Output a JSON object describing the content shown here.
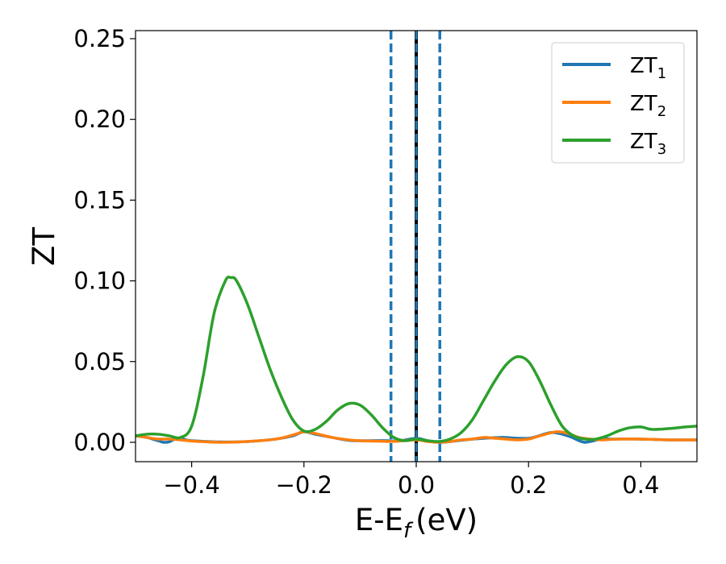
{
  "chart_data": {
    "type": "line",
    "title": "",
    "xlabel": "E-E",
    "xlabel_sub": "f",
    "xlabel_unit": "(eV)",
    "ylabel": "ZT",
    "xlim": [
      -0.5,
      0.5
    ],
    "ylim": [
      -0.012,
      0.255
    ],
    "xticks": [
      -0.4,
      -0.2,
      0.0,
      0.2,
      0.4
    ],
    "xtick_labels": [
      "−0.4",
      "−0.2",
      "0.0",
      "0.2",
      "0.4"
    ],
    "yticks": [
      0.0,
      0.05,
      0.1,
      0.15,
      0.2,
      0.25
    ],
    "ytick_labels": [
      "0.00",
      "0.05",
      "0.10",
      "0.15",
      "0.20",
      "0.25"
    ],
    "grid": false,
    "legend_position": "top-right",
    "vlines": [
      {
        "x": -0.045,
        "color": "#1f77b4",
        "style": "dashed"
      },
      {
        "x": 0.0,
        "color": "#1f77b4",
        "style": "solid-over-black"
      },
      {
        "x": 0.042,
        "color": "#1f77b4",
        "style": "dashed"
      }
    ],
    "series": [
      {
        "name": "ZT",
        "subscript": "1",
        "color": "#1f77b4",
        "x": [
          -0.5,
          -0.48,
          -0.46,
          -0.45,
          -0.44,
          -0.43,
          -0.42,
          -0.41,
          -0.4,
          -0.35,
          -0.3,
          -0.25,
          -0.22,
          -0.2,
          -0.18,
          -0.15,
          -0.12,
          -0.1,
          -0.08,
          -0.05,
          -0.03,
          0.0,
          0.02,
          0.04,
          0.06,
          0.1,
          0.15,
          0.2,
          0.24,
          0.27,
          0.29,
          0.3,
          0.31,
          0.33,
          0.35,
          0.4,
          0.45,
          0.5
        ],
        "y": [
          0.004,
          0.003,
          0.001,
          0.0,
          0.0003,
          0.002,
          0.0025,
          0.0015,
          0.001,
          0.0002,
          0.0005,
          0.002,
          0.004,
          0.0065,
          0.005,
          0.003,
          0.0012,
          0.001,
          0.001,
          0.001,
          0.0008,
          0.0025,
          0.001,
          0.0,
          0.0004,
          0.002,
          0.003,
          0.0025,
          0.006,
          0.004,
          0.001,
          0.0,
          0.0005,
          0.002,
          0.002,
          0.002,
          0.0015,
          0.0015
        ]
      },
      {
        "name": "ZT",
        "subscript": "2",
        "color": "#ff7f0e",
        "x": [
          -0.5,
          -0.48,
          -0.46,
          -0.44,
          -0.42,
          -0.4,
          -0.38,
          -0.35,
          -0.3,
          -0.25,
          -0.22,
          -0.2,
          -0.18,
          -0.15,
          -0.12,
          -0.1,
          -0.08,
          -0.05,
          -0.03,
          0.0,
          0.02,
          0.04,
          0.06,
          0.08,
          0.1,
          0.12,
          0.14,
          0.16,
          0.18,
          0.2,
          0.22,
          0.25,
          0.27,
          0.29,
          0.31,
          0.33,
          0.36,
          0.4,
          0.45,
          0.5
        ],
        "y": [
          0.004,
          0.003,
          0.002,
          0.002,
          0.0015,
          0.0008,
          0.0004,
          0.0,
          0.0005,
          0.002,
          0.0045,
          0.0065,
          0.0055,
          0.003,
          0.0015,
          0.001,
          0.0008,
          0.0005,
          0.0008,
          0.0015,
          0.0005,
          0.0,
          0.0005,
          0.0015,
          0.002,
          0.003,
          0.0025,
          0.002,
          0.0015,
          0.002,
          0.004,
          0.0065,
          0.0055,
          0.003,
          0.002,
          0.0015,
          0.002,
          0.002,
          0.0015,
          0.0015
        ]
      },
      {
        "name": "ZT",
        "subscript": "3",
        "color": "#2ca02c",
        "x": [
          -0.5,
          -0.48,
          -0.46,
          -0.44,
          -0.42,
          -0.4,
          -0.38,
          -0.36,
          -0.34,
          -0.33,
          -0.32,
          -0.3,
          -0.28,
          -0.26,
          -0.24,
          -0.22,
          -0.2,
          -0.18,
          -0.16,
          -0.14,
          -0.12,
          -0.1,
          -0.08,
          -0.06,
          -0.04,
          -0.02,
          0.0,
          0.02,
          0.04,
          0.06,
          0.08,
          0.1,
          0.12,
          0.14,
          0.16,
          0.18,
          0.2,
          0.22,
          0.24,
          0.26,
          0.28,
          0.3,
          0.32,
          0.34,
          0.36,
          0.38,
          0.4,
          0.42,
          0.45,
          0.48,
          0.5
        ],
        "y": [
          0.004,
          0.005,
          0.005,
          0.004,
          0.003,
          0.01,
          0.04,
          0.08,
          0.1,
          0.102,
          0.1,
          0.085,
          0.065,
          0.045,
          0.028,
          0.014,
          0.007,
          0.008,
          0.013,
          0.02,
          0.024,
          0.023,
          0.017,
          0.009,
          0.003,
          0.001,
          0.002,
          0.001,
          0.0005,
          0.002,
          0.006,
          0.014,
          0.026,
          0.038,
          0.048,
          0.053,
          0.05,
          0.038,
          0.023,
          0.01,
          0.004,
          0.002,
          0.002,
          0.004,
          0.007,
          0.009,
          0.0095,
          0.008,
          0.0085,
          0.0095,
          0.01
        ]
      }
    ]
  }
}
